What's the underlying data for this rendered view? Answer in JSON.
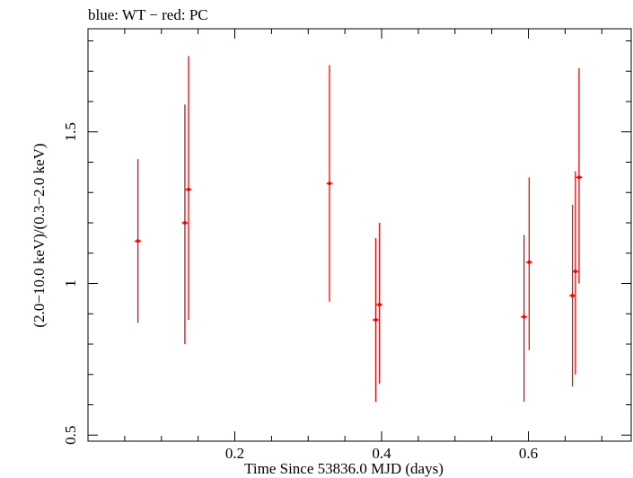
{
  "chart_data": {
    "type": "scatter",
    "title": "blue: WT − red: PC",
    "xlabel": "Time Since 53836.0 MJD (days)",
    "ylabel": "(2.0−10.0 keV)/(0.3−2.0 keV)",
    "xlim": [
      0.0,
      0.74
    ],
    "ylim": [
      0.48,
      1.84
    ],
    "x_ticks": [
      {
        "value": 0.2,
        "label": "0.2"
      },
      {
        "value": 0.4,
        "label": "0.4"
      },
      {
        "value": 0.6,
        "label": "0.6"
      }
    ],
    "y_ticks": [
      {
        "value": 0.5,
        "label": "0.5"
      },
      {
        "value": 1.0,
        "label": "1"
      },
      {
        "value": 1.5,
        "label": "1.5"
      }
    ],
    "grid": false,
    "series": [
      {
        "name": "PC",
        "color": "#ff0000",
        "points": [
          {
            "x": 0.068,
            "y": 1.14,
            "ylo": 0.87,
            "yhi": 1.41
          },
          {
            "x": 0.132,
            "y": 1.2,
            "ylo": 0.8,
            "yhi": 1.59
          },
          {
            "x": 0.137,
            "y": 1.31,
            "ylo": 0.88,
            "yhi": 1.75
          },
          {
            "x": 0.329,
            "y": 1.33,
            "ylo": 0.94,
            "yhi": 1.72
          },
          {
            "x": 0.392,
            "y": 0.88,
            "ylo": 0.61,
            "yhi": 1.15
          },
          {
            "x": 0.397,
            "y": 0.93,
            "ylo": 0.67,
            "yhi": 1.2
          },
          {
            "x": 0.594,
            "y": 0.89,
            "ylo": 0.61,
            "yhi": 1.16
          },
          {
            "x": 0.601,
            "y": 1.07,
            "ylo": 0.78,
            "yhi": 1.35
          },
          {
            "x": 0.66,
            "y": 0.96,
            "ylo": 0.66,
            "yhi": 1.26
          },
          {
            "x": 0.664,
            "y": 1.04,
            "ylo": 0.7,
            "yhi": 1.37
          },
          {
            "x": 0.669,
            "y": 1.35,
            "ylo": 1.0,
            "yhi": 1.71
          }
        ]
      },
      {
        "name": "WT",
        "color": "#0000ff",
        "points": []
      }
    ]
  }
}
